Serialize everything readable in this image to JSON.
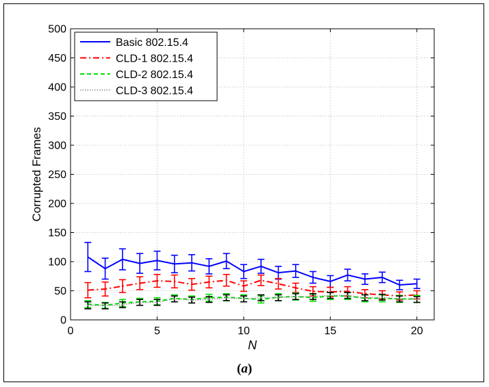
{
  "caption": {
    "open": "(",
    "letter": "a",
    "close": ")"
  },
  "chart_data": {
    "type": "line",
    "title": "",
    "xlabel": "N",
    "ylabel": "Corrupted Frames",
    "xlim": [
      0,
      21
    ],
    "ylim": [
      0,
      500
    ],
    "xticks": [
      0,
      5,
      10,
      15,
      20
    ],
    "yticks": [
      0,
      50,
      100,
      150,
      200,
      250,
      300,
      350,
      400,
      450,
      500
    ],
    "grid": true,
    "legend_position": "top-left",
    "x": [
      1,
      2,
      3,
      4,
      5,
      6,
      7,
      8,
      9,
      10,
      11,
      12,
      13,
      14,
      15,
      16,
      17,
      18,
      19,
      20
    ],
    "series": [
      {
        "name": "Basic 802.15.4",
        "color": "#0000ff",
        "style": "solid",
        "values": [
          108,
          88,
          104,
          97,
          102,
          96,
          98,
          92,
          101,
          83,
          92,
          81,
          84,
          73,
          66,
          77,
          70,
          73,
          60,
          62
        ],
        "error": [
          25,
          18,
          18,
          17,
          16,
          15,
          14,
          13,
          13,
          12,
          12,
          11,
          11,
          10,
          10,
          10,
          9,
          9,
          8,
          8
        ]
      },
      {
        "name": "CLD-1 802.15.4",
        "color": "#ff0000",
        "style": "dashdot",
        "values": [
          51,
          53,
          58,
          63,
          67,
          66,
          61,
          65,
          68,
          58,
          68,
          62,
          55,
          49,
          48,
          49,
          45,
          43,
          41,
          43
        ],
        "error": [
          13,
          12,
          11,
          11,
          11,
          11,
          10,
          10,
          10,
          9,
          9,
          9,
          8,
          8,
          8,
          8,
          7,
          7,
          7,
          7
        ]
      },
      {
        "name": "CLD-2 802.15.4",
        "color": "#00dd00",
        "style": "dashed",
        "values": [
          27,
          25,
          29,
          31,
          32,
          37,
          35,
          38,
          39,
          37,
          35,
          39,
          40,
          38,
          41,
          41,
          37,
          37,
          36,
          36
        ],
        "error": [
          6,
          5,
          6,
          6,
          6,
          6,
          6,
          6,
          6,
          6,
          6,
          6,
          6,
          6,
          6,
          6,
          6,
          6,
          6,
          6
        ]
      },
      {
        "name": "CLD-3 802.15.4",
        "color": "#888888",
        "style": "dotted",
        "values": [
          25,
          24,
          26,
          30,
          30,
          36,
          34,
          35,
          38,
          36,
          38,
          38,
          40,
          40,
          42,
          42,
          38,
          39,
          36,
          35
        ],
        "error": [
          6,
          5,
          5,
          5,
          5,
          5,
          5,
          5,
          5,
          5,
          5,
          5,
          5,
          5,
          5,
          5,
          5,
          5,
          5,
          5
        ]
      }
    ]
  }
}
